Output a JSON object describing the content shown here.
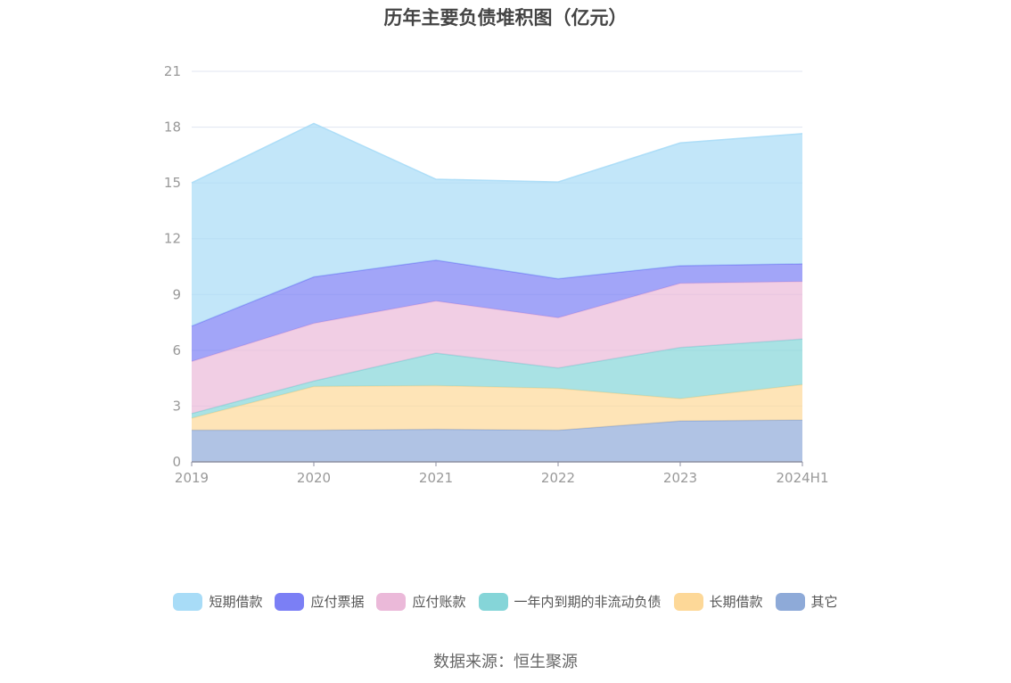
{
  "page": {
    "title": "历年主要负债堆积图（亿元）",
    "source": "数据来源：恒生聚源"
  },
  "chart_data": {
    "type": "area",
    "stacked": true,
    "title": "历年主要负债堆积图（亿元）",
    "xlabel": "",
    "ylabel": "",
    "categories": [
      "2019",
      "2020",
      "2021",
      "2022",
      "2023",
      "2024H1"
    ],
    "ylim": [
      0,
      21
    ],
    "yticks": [
      0,
      3,
      6,
      9,
      12,
      15,
      18,
      21
    ],
    "grid": true,
    "legend_position": "bottom",
    "series": [
      {
        "name": "其它",
        "color": "#8eaad8",
        "values": [
          1.7,
          1.7,
          1.75,
          1.7,
          2.2,
          2.25
        ]
      },
      {
        "name": "长期借款",
        "color": "#fdd898",
        "values": [
          0.65,
          2.35,
          2.35,
          2.25,
          1.2,
          1.9
        ]
      },
      {
        "name": "一年内到期的非流动负债",
        "color": "#85d5d8",
        "values": [
          0.25,
          0.3,
          1.75,
          1.1,
          2.75,
          2.45
        ]
      },
      {
        "name": "应付账款",
        "color": "#ebb9d9",
        "values": [
          2.8,
          3.1,
          2.8,
          2.7,
          3.45,
          3.1
        ]
      },
      {
        "name": "应付票据",
        "color": "#7b7ff5",
        "values": [
          1.9,
          2.5,
          2.2,
          2.1,
          0.95,
          0.95
        ]
      },
      {
        "name": "短期借款",
        "color": "#a8dcf7",
        "values": [
          7.7,
          8.25,
          4.35,
          5.2,
          6.6,
          7.0
        ]
      }
    ],
    "legend_order": [
      "短期借款",
      "应付票据",
      "应付账款",
      "一年内到期的非流动负债",
      "长期借款",
      "其它"
    ]
  }
}
